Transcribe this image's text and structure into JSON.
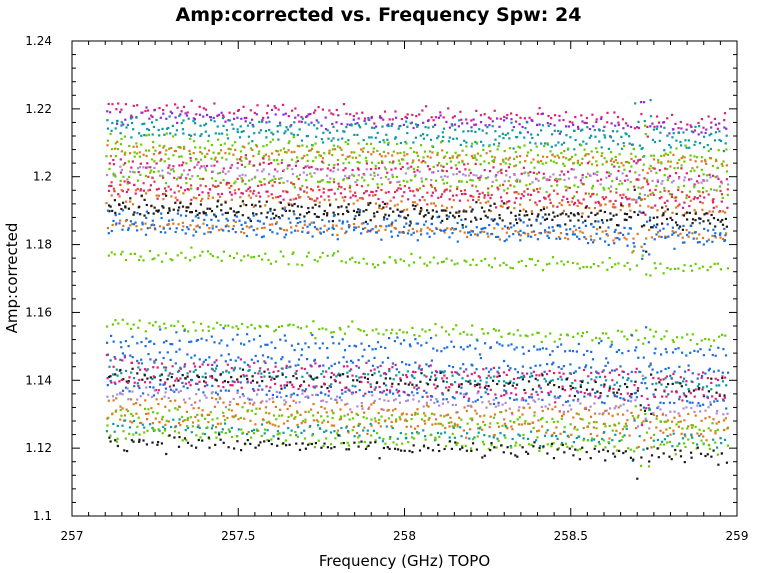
{
  "chart_data": {
    "type": "scatter",
    "title": "Amp:corrected vs. Frequency Spw: 24",
    "xlabel": "Frequency (GHz) TOPO",
    "ylabel": "Amp:corrected",
    "xlim": [
      257,
      259
    ],
    "ylim": [
      1.1,
      1.24
    ],
    "x_ticks": [
      257,
      257.5,
      258,
      258.5,
      259
    ],
    "x_tick_labels": [
      "257",
      "257.5",
      "258",
      "258.5",
      "259"
    ],
    "y_ticks": [
      1.1,
      1.12,
      1.14,
      1.16,
      1.18,
      1.2,
      1.22,
      1.24
    ],
    "y_tick_labels": [
      "1.1",
      "1.12",
      "1.14",
      "1.16",
      "1.18",
      "1.2",
      "1.22",
      "1.24"
    ],
    "data_x_range": [
      257.1,
      258.97
    ],
    "rfi_frequency": 258.71,
    "grid": false,
    "legend": "none",
    "colors": {
      "pink": "#e01e78",
      "purple": "#8a2be2",
      "teal": "#0a9aa0",
      "green": "#66cc00",
      "orange": "#e07820",
      "lavender": "#b088d8",
      "red": "#e8383c",
      "black": "#1a1a1a",
      "blue": "#1a6ee0"
    },
    "series": [
      {
        "color": "pink",
        "y_start": 1.2205,
        "y_end": 1.2165,
        "spread": 0.0012
      },
      {
        "color": "purple",
        "y_start": 1.2185,
        "y_end": 1.2145,
        "spread": 0.0012
      },
      {
        "color": "teal",
        "y_start": 1.2165,
        "y_end": 1.2125,
        "spread": 0.0012
      },
      {
        "color": "teal",
        "y_start": 1.2135,
        "y_end": 1.2095,
        "spread": 0.0012
      },
      {
        "color": "green",
        "y_start": 1.2105,
        "y_end": 1.2065,
        "spread": 0.0012
      },
      {
        "color": "orange",
        "y_start": 1.2085,
        "y_end": 1.2045,
        "spread": 0.0012
      },
      {
        "color": "green",
        "y_start": 1.2065,
        "y_end": 1.2025,
        "spread": 0.0012
      },
      {
        "color": "pink",
        "y_start": 1.2045,
        "y_end": 1.2005,
        "spread": 0.0012
      },
      {
        "color": "lavender",
        "y_start": 1.2025,
        "y_end": 1.1985,
        "spread": 0.0012
      },
      {
        "color": "green",
        "y_start": 1.2005,
        "y_end": 1.1965,
        "spread": 0.0012
      },
      {
        "color": "red",
        "y_start": 1.1985,
        "y_end": 1.1945,
        "spread": 0.0012
      },
      {
        "color": "pink",
        "y_start": 1.1965,
        "y_end": 1.1925,
        "spread": 0.0012
      },
      {
        "color": "orange",
        "y_start": 1.1945,
        "y_end": 1.1905,
        "spread": 0.0012
      },
      {
        "color": "black",
        "y_start": 1.1925,
        "y_end": 1.1885,
        "spread": 0.0012
      },
      {
        "color": "black",
        "y_start": 1.1905,
        "y_end": 1.1865,
        "spread": 0.0012
      },
      {
        "color": "blue",
        "y_start": 1.1885,
        "y_end": 1.1845,
        "spread": 0.0012
      },
      {
        "color": "orange",
        "y_start": 1.1865,
        "y_end": 1.1825,
        "spread": 0.0008
      },
      {
        "color": "blue",
        "y_start": 1.1855,
        "y_end": 1.1815,
        "spread": 0.0012
      },
      {
        "color": "green",
        "y_start": 1.1775,
        "y_end": 1.1735,
        "spread": 0.001
      },
      {
        "color": "green",
        "y_start": 1.157,
        "y_end": 1.1525,
        "spread": 0.001
      },
      {
        "color": "blue",
        "y_start": 1.153,
        "y_end": 1.1485,
        "spread": 0.0012
      },
      {
        "color": "blue",
        "y_start": 1.147,
        "y_end": 1.1425,
        "spread": 0.0012
      },
      {
        "color": "pink",
        "y_start": 1.145,
        "y_end": 1.1405,
        "spread": 0.0012
      },
      {
        "color": "teal",
        "y_start": 1.1435,
        "y_end": 1.139,
        "spread": 0.0012
      },
      {
        "color": "black",
        "y_start": 1.142,
        "y_end": 1.1375,
        "spread": 0.0012
      },
      {
        "color": "pink",
        "y_start": 1.14,
        "y_end": 1.1355,
        "spread": 0.0012
      },
      {
        "color": "blue",
        "y_start": 1.1385,
        "y_end": 1.134,
        "spread": 0.0012
      },
      {
        "color": "lavender",
        "y_start": 1.136,
        "y_end": 1.1315,
        "spread": 0.0012
      },
      {
        "color": "orange",
        "y_start": 1.1335,
        "y_end": 1.129,
        "spread": 0.0012
      },
      {
        "color": "green",
        "y_start": 1.131,
        "y_end": 1.1265,
        "spread": 0.0012
      },
      {
        "color": "orange",
        "y_start": 1.129,
        "y_end": 1.1245,
        "spread": 0.0012
      },
      {
        "color": "teal",
        "y_start": 1.127,
        "y_end": 1.1225,
        "spread": 0.0012
      },
      {
        "color": "green",
        "y_start": 1.125,
        "y_end": 1.1205,
        "spread": 0.0012
      },
      {
        "color": "black",
        "y_start": 1.1225,
        "y_end": 1.118,
        "spread": 0.0012
      }
    ]
  }
}
